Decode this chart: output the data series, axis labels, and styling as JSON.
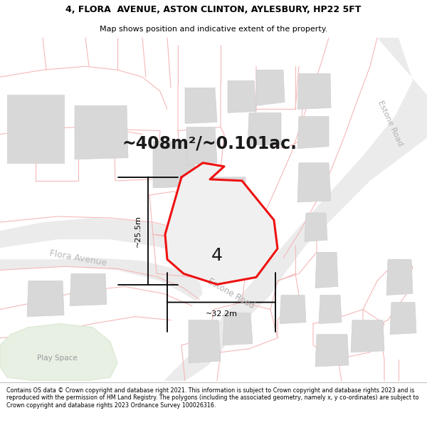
{
  "title_line1": "4, FLORA  AVENUE, ASTON CLINTON, AYLESBURY, HP22 5FT",
  "title_line2": "Map shows position and indicative extent of the property.",
  "area_text": "~408m²/~0.101ac.",
  "label_4": "4",
  "label_road": "Estone Road",
  "label_road2": "Estone Road",
  "label_avenue": "Flora Avenue",
  "label_play": "Play Space",
  "dim_vertical": "~25.5m",
  "dim_horizontal": "~32.2m",
  "footer": "Contains OS data © Crown copyright and database right 2021. This information is subject to Crown copyright and database rights 2023 and is reproduced with the permission of HM Land Registry. The polygons (including the associated geometry, namely x, y co-ordinates) are subject to Crown copyright and database rights 2023 Ordnance Survey 100026316.",
  "map_bg": "#ffffff",
  "road_fill": "#e8e8e8",
  "road_outline": "#f5b8b8",
  "bld_fill": "#d8d8d8",
  "bld_edge": "#cccccc",
  "green_fill": "#e8f0e4",
  "green_edge": "#d8e8d0",
  "plot_fill": "#e8e8e8",
  "plot_red": "#ee1111",
  "parcel_edge": "#f0b0b0",
  "text_dark": "#333333",
  "text_gray": "#aaaaaa",
  "text_lgray": "#bbbbbb"
}
